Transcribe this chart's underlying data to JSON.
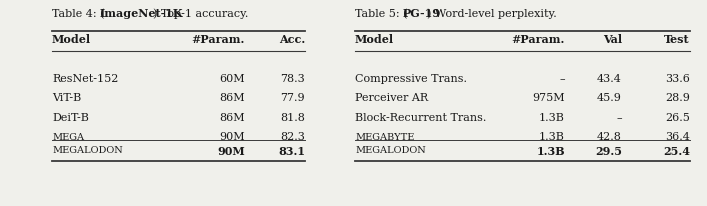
{
  "background_color": "#f0f0eb",
  "table4_caption_pre": "Table 4: (",
  "table4_caption_bold": "ImageNet-1K",
  "table4_caption_post": ") Top-1 accuracy.",
  "table4_headers": [
    "Model",
    "#Param.",
    "Acc."
  ],
  "table4_rows": [
    [
      "ResNet-152",
      "60M",
      "78.3",
      false
    ],
    [
      "ViT-B",
      "86M",
      "77.9",
      false
    ],
    [
      "DeiT-B",
      "86M",
      "81.8",
      false
    ],
    [
      "Mega",
      "90M",
      "82.3",
      true
    ]
  ],
  "table4_last_row": [
    "Megalodon",
    "90M",
    "83.1"
  ],
  "table5_caption_pre": "Table 5: (",
  "table5_caption_bold": "PG-19",
  "table5_caption_post": ") Word-level perplexity.",
  "table5_headers": [
    "Model",
    "#Param.",
    "Val",
    "Test"
  ],
  "table5_rows": [
    [
      "Compressive Trans.",
      "–",
      "43.4",
      "33.6",
      false
    ],
    [
      "Perceiver AR",
      "975M",
      "45.9",
      "28.9",
      false
    ],
    [
      "Block-Recurrent Trans.",
      "1.3B",
      "–",
      "26.5",
      false
    ],
    [
      "Megabyte",
      "1.3B",
      "42.8",
      "36.4",
      true
    ]
  ],
  "table5_last_row": [
    "Megalodon",
    "1.3B",
    "29.5",
    "25.4"
  ],
  "text_color": "#1a1a1a",
  "line_color": "#3a3a3a"
}
